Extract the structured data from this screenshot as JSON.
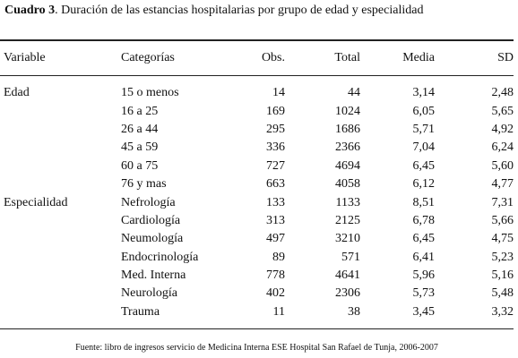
{
  "caption": {
    "lead": "Cuadro 3",
    "text": ".  Duración de las estancias hospitalarias por grupo de edad y especialidad"
  },
  "table": {
    "headers": [
      "Variable",
      "Categorías",
      "Obs.",
      "Total",
      "Media",
      "SD"
    ],
    "rows": [
      {
        "variable": "Edad",
        "category": "15 o menos",
        "obs": "14",
        "total": "44",
        "media": "3,14",
        "sd": "2,48"
      },
      {
        "variable": "",
        "category": "16 a 25",
        "obs": "169",
        "total": "1024",
        "media": "6,05",
        "sd": "5,65"
      },
      {
        "variable": "",
        "category": "26 a 44",
        "obs": "295",
        "total": "1686",
        "media": "5,71",
        "sd": "4,92"
      },
      {
        "variable": "",
        "category": "45 a 59",
        "obs": "336",
        "total": "2366",
        "media": "7,04",
        "sd": "6,24"
      },
      {
        "variable": "",
        "category": "60 a 75",
        "obs": "727",
        "total": "4694",
        "media": "6,45",
        "sd": "5,60"
      },
      {
        "variable": "",
        "category": "76 y mas",
        "obs": "663",
        "total": "4058",
        "media": "6,12",
        "sd": "4,77"
      },
      {
        "variable": "Especialidad",
        "category": "Nefrología",
        "obs": "133",
        "total": "1133",
        "media": "8,51",
        "sd": "7,31"
      },
      {
        "variable": "",
        "category": "Cardiología",
        "obs": "313",
        "total": "2125",
        "media": "6,78",
        "sd": "5,66"
      },
      {
        "variable": "",
        "category": "Neumología",
        "obs": "497",
        "total": "3210",
        "media": "6,45",
        "sd": "4,75"
      },
      {
        "variable": "",
        "category": "Endocrinología",
        "obs": "89",
        "total": "571",
        "media": "6,41",
        "sd": "5,23"
      },
      {
        "variable": "",
        "category": "Med. Interna",
        "obs": "778",
        "total": "4641",
        "media": "5,96",
        "sd": "5,16"
      },
      {
        "variable": "",
        "category": "Neurología",
        "obs": "402",
        "total": "2306",
        "media": "5,73",
        "sd": "5,48"
      },
      {
        "variable": "",
        "category": "Trauma",
        "obs": "11",
        "total": "38",
        "media": "3,45",
        "sd": "3,32"
      }
    ]
  },
  "source": "Fuente: libro de ingresos servicio de Medicina Interna ESE Hospital San Rafael de Tunja, 2006-2007"
}
